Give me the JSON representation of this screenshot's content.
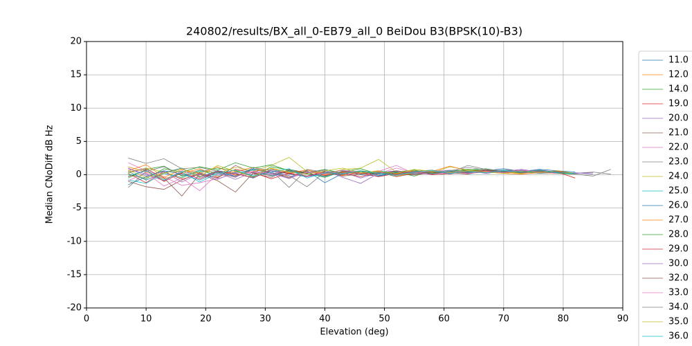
{
  "chart_data": {
    "type": "line",
    "title": "240802/results/BX_all_0-EB79_all_0 BeiDou B3(BPSK(10)-B3)",
    "x_label": "Elevation (deg)",
    "y_label": "Median CNoDiff dB Hz",
    "xlim": [
      0,
      90
    ],
    "ylim": [
      -20,
      20
    ],
    "xticks": [
      0,
      10,
      20,
      30,
      40,
      50,
      60,
      70,
      80,
      90
    ],
    "yticks": [
      -20,
      -15,
      -10,
      -5,
      0,
      5,
      10,
      15,
      20
    ],
    "grid": true,
    "legend": "right",
    "x": [
      7,
      10,
      13,
      16,
      19,
      22,
      25,
      28,
      31,
      34,
      37,
      40,
      43,
      46,
      49,
      52,
      55,
      58,
      61,
      64,
      67,
      70,
      73,
      76,
      79,
      82,
      85,
      88
    ],
    "series": [
      {
        "name": "11.0",
        "color": "#1f77b4",
        "values": [
          0.5,
          -0.8,
          0.3,
          1.0,
          -0.4,
          0.6,
          0.2,
          -0.5,
          0.8,
          0.1,
          -0.3,
          0.4,
          0.6,
          0.0,
          -0.2,
          0.3,
          0.5,
          0.2,
          0.7,
          0.4,
          0.6,
          0.9,
          0.5,
          0.8,
          0.6,
          0.4,
          null,
          null
        ]
      },
      {
        "name": "12.0",
        "color": "#ff7f0e",
        "values": [
          1.2,
          0.4,
          -0.6,
          0.2,
          0.9,
          -0.3,
          0.5,
          1.1,
          0.3,
          -0.4,
          0.7,
          0.2,
          -0.1,
          0.5,
          0.3,
          0.1,
          0.6,
          0.4,
          0.2,
          0.8,
          0.5,
          0.3,
          0.6,
          0.4,
          0.2,
          null,
          null,
          null
        ]
      },
      {
        "name": "14.0",
        "color": "#2ca02c",
        "values": [
          -0.5,
          0.8,
          1.3,
          -0.2,
          0.4,
          1.0,
          0.6,
          -0.3,
          1.2,
          0.7,
          0.2,
          -0.4,
          0.5,
          0.9,
          0.1,
          0.4,
          -0.2,
          0.6,
          0.3,
          0.7,
          0.9,
          0.5,
          0.4,
          0.6,
          0.3,
          0.1,
          null,
          null
        ]
      },
      {
        "name": "19.0",
        "color": "#d62728",
        "values": [
          0.2,
          -1.2,
          0.5,
          -0.7,
          0.1,
          -0.4,
          0.8,
          0.3,
          -0.6,
          0.2,
          0.5,
          -0.1,
          0.3,
          -0.3,
          0.4,
          0.1,
          0.0,
          0.3,
          0.5,
          0.2,
          0.4,
          0.7,
          0.6,
          0.3,
          0.5,
          0.2,
          null,
          null
        ]
      },
      {
        "name": "20.0",
        "color": "#9467bd",
        "values": [
          0.9,
          0.1,
          -0.9,
          0.6,
          -0.2,
          0.3,
          -0.7,
          0.4,
          0.1,
          0.6,
          -0.3,
          0.2,
          0.4,
          -0.5,
          0.3,
          0.6,
          0.2,
          0.5,
          0.1,
          0.6,
          0.3,
          0.5,
          0.8,
          0.4,
          0.2,
          0.3,
          0.1,
          null
        ]
      },
      {
        "name": "21.0",
        "color": "#8c564b",
        "values": [
          -1.0,
          -1.8,
          -2.2,
          -0.8,
          0.3,
          -0.5,
          1.4,
          0.2,
          -0.4,
          0.8,
          0.3,
          0.5,
          -0.2,
          0.1,
          0.4,
          -0.3,
          0.2,
          0.5,
          0.3,
          0.1,
          0.6,
          0.4,
          0.2,
          0.5,
          0.3,
          null,
          null,
          null
        ]
      },
      {
        "name": "22.0",
        "color": "#e377c2",
        "values": [
          1.8,
          0.6,
          -0.3,
          -1.6,
          -1.2,
          -0.6,
          0.2,
          0.5,
          -0.2,
          0.3,
          0.7,
          0.1,
          0.4,
          0.6,
          0.2,
          1.0,
          0.3,
          0.5,
          0.7,
          0.4,
          0.5,
          0.3,
          0.6,
          0.4,
          0.2,
          null,
          null,
          null
        ]
      },
      {
        "name": "23.0",
        "color": "#7f7f7f",
        "values": [
          2.5,
          1.7,
          2.4,
          0.9,
          1.1,
          0.5,
          -0.3,
          0.8,
          0.2,
          -0.1,
          -1.8,
          0.4,
          0.6,
          0.3,
          0.1,
          0.5,
          0.2,
          0.4,
          0.6,
          1.1,
          0.7,
          0.5,
          0.4,
          0.6,
          0.3,
          0.2,
          0.4,
          0.1
        ]
      },
      {
        "name": "24.0",
        "color": "#bcbd22",
        "values": [
          0.3,
          1.0,
          0.4,
          -0.5,
          0.7,
          0.2,
          1.1,
          0.6,
          1.4,
          2.6,
          0.5,
          0.1,
          0.8,
          1.0,
          2.3,
          0.4,
          0.6,
          0.3,
          1.2,
          0.7,
          0.5,
          0.4,
          0.2,
          0.5,
          0.3,
          null,
          null,
          null
        ]
      },
      {
        "name": "25.0",
        "color": "#17becf",
        "values": [
          -0.8,
          -1.3,
          0.2,
          -0.4,
          0.6,
          -0.1,
          0.3,
          0.7,
          -0.2,
          0.5,
          0.1,
          -0.3,
          0.4,
          0.2,
          0.6,
          0.3,
          0.1,
          0.4,
          0.6,
          0.3,
          0.5,
          0.7,
          0.4,
          0.2,
          0.3,
          0.2,
          null,
          null
        ]
      },
      {
        "name": "26.0",
        "color": "#1f77b4",
        "values": [
          -1.5,
          -0.3,
          0.6,
          0.1,
          -0.8,
          0.4,
          -0.2,
          0.9,
          0.3,
          -0.5,
          0.6,
          -1.2,
          0.2,
          0.5,
          -0.1,
          0.3,
          0.4,
          0.1,
          0.5,
          0.3,
          0.7,
          0.4,
          0.6,
          0.3,
          0.5,
          null,
          null,
          null
        ]
      },
      {
        "name": "27.0",
        "color": "#ff7f0e",
        "values": [
          0.6,
          1.5,
          -0.4,
          0.8,
          0.2,
          1.2,
          -0.1,
          0.5,
          0.9,
          0.3,
          0.7,
          0.0,
          0.4,
          0.2,
          0.6,
          -0.2,
          0.3,
          0.5,
          1.3,
          0.6,
          0.4,
          0.2,
          0.1,
          0.3,
          0.2,
          null,
          null,
          null
        ]
      },
      {
        "name": "28.0",
        "color": "#2ca02c",
        "values": [
          0.1,
          -0.6,
          0.9,
          0.4,
          1.2,
          0.7,
          1.8,
          1.0,
          1.5,
          0.6,
          0.3,
          0.8,
          0.2,
          0.5,
          0.1,
          0.4,
          0.7,
          0.2,
          0.5,
          0.8,
          0.6,
          0.4,
          0.3,
          0.5,
          0.2,
          0.1,
          null,
          null
        ]
      },
      {
        "name": "29.0",
        "color": "#d62728",
        "values": [
          -0.3,
          0.7,
          -1.0,
          0.3,
          -0.6,
          0.5,
          0.1,
          -0.4,
          0.6,
          0.2,
          -0.2,
          0.4,
          0.0,
          0.3,
          -0.3,
          0.2,
          0.5,
          0.0,
          0.2,
          0.4,
          0.6,
          0.3,
          0.5,
          0.7,
          0.4,
          -0.5,
          null,
          null
        ]
      },
      {
        "name": "30.0",
        "color": "#9467bd",
        "values": [
          1.0,
          -0.2,
          0.5,
          -1.1,
          0.2,
          -0.7,
          0.4,
          0.0,
          0.6,
          -0.3,
          0.3,
          0.7,
          -0.4,
          -1.3,
          0.2,
          0.5,
          0.3,
          0.1,
          0.4,
          0.6,
          0.2,
          0.5,
          0.3,
          0.4,
          0.6,
          0.2,
          0.3,
          null
        ]
      },
      {
        "name": "32.0",
        "color": "#8c564b",
        "values": [
          0.4,
          0.9,
          -0.5,
          -3.2,
          0.1,
          -0.9,
          -2.6,
          0.3,
          -0.1,
          0.6,
          0.2,
          -0.2,
          0.5,
          0.3,
          0.1,
          0.6,
          0.2,
          0.4,
          0.3,
          0.5,
          0.7,
          0.5,
          0.3,
          0.6,
          0.4,
          0.2,
          null,
          null
        ]
      },
      {
        "name": "33.0",
        "color": "#e377c2",
        "values": [
          -0.9,
          0.3,
          -1.7,
          -0.5,
          -2.4,
          0.1,
          -0.3,
          0.5,
          0.2,
          -0.6,
          0.4,
          0.1,
          0.7,
          0.3,
          0.5,
          1.4,
          0.2,
          0.6,
          0.4,
          0.2,
          0.5,
          0.3,
          0.7,
          0.4,
          0.2,
          null,
          null,
          null
        ]
      },
      {
        "name": "34.0",
        "color": "#7f7f7f",
        "values": [
          -1.9,
          0.5,
          1.2,
          -0.1,
          0.7,
          0.3,
          -0.4,
          1.1,
          0.6,
          -1.9,
          0.8,
          0.4,
          0.2,
          0.6,
          0.3,
          0.0,
          0.5,
          0.7,
          0.3,
          1.4,
          0.8,
          0.6,
          0.5,
          0.2,
          0.4,
          0.1,
          -0.2,
          0.8
        ]
      },
      {
        "name": "35.0",
        "color": "#bcbd22",
        "values": [
          0.7,
          -0.4,
          0.2,
          0.9,
          -0.3,
          1.4,
          0.5,
          -0.2,
          1.0,
          0.4,
          0.1,
          0.6,
          1.0,
          0.3,
          0.5,
          0.2,
          0.8,
          0.5,
          0.3,
          0.6,
          0.4,
          0.2,
          0.5,
          0.3,
          0.6,
          0.2,
          null,
          null
        ]
      },
      {
        "name": "36.0",
        "color": "#17becf",
        "values": [
          -0.2,
          0.6,
          -0.8,
          0.4,
          -1.1,
          0.2,
          0.7,
          -0.2,
          0.4,
          0.9,
          -0.5,
          0.3,
          0.1,
          0.6,
          0.2,
          -0.1,
          0.4,
          0.6,
          0.2,
          0.5,
          0.3,
          0.6,
          0.4,
          0.7,
          0.3,
          0.2,
          null,
          null
        ]
      }
    ]
  }
}
